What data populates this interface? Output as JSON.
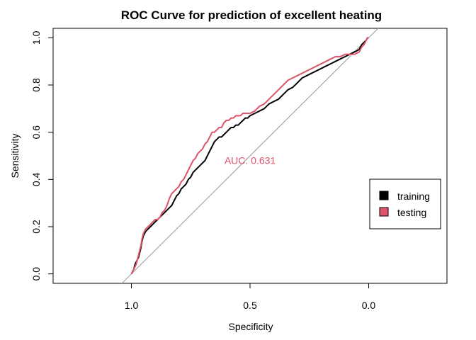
{
  "chart_data": {
    "type": "line",
    "title": "ROC Curve for prediction of excellent heating",
    "xlabel": "Specificity",
    "ylabel": "Sensitivity",
    "xlim": [
      1.33,
      -0.33
    ],
    "ylim": [
      -0.04,
      1.04
    ],
    "x_ticks": [
      1.0,
      0.5,
      0.0
    ],
    "x_tick_labels": [
      "1.0",
      "0.5",
      "0.0"
    ],
    "y_ticks": [
      0.0,
      0.2,
      0.4,
      0.6,
      0.8,
      1.0
    ],
    "y_tick_labels": [
      "0.0",
      "0.2",
      "0.4",
      "0.6",
      "0.8",
      "1.0"
    ],
    "reference_line": {
      "from": [
        1.05,
        -0.05
      ],
      "to": [
        -0.05,
        1.05
      ],
      "color": "#999999"
    },
    "annotation": {
      "text": "AUC: 0.631",
      "x": 0.5,
      "y": 0.48,
      "color": "#DF536B"
    },
    "legend": {
      "position": "right",
      "entries": [
        {
          "label": "training",
          "color": "#000000"
        },
        {
          "label": "testing",
          "color": "#DF536B"
        }
      ]
    },
    "series": [
      {
        "name": "training",
        "color": "#000000",
        "specificity": [
          1.0,
          0.995,
          0.99,
          0.985,
          0.98,
          0.975,
          0.97,
          0.965,
          0.96,
          0.955,
          0.95,
          0.94,
          0.93,
          0.92,
          0.91,
          0.9,
          0.89,
          0.88,
          0.87,
          0.86,
          0.85,
          0.84,
          0.83,
          0.82,
          0.81,
          0.8,
          0.79,
          0.78,
          0.77,
          0.76,
          0.75,
          0.74,
          0.73,
          0.72,
          0.71,
          0.7,
          0.69,
          0.68,
          0.67,
          0.66,
          0.65,
          0.64,
          0.63,
          0.62,
          0.61,
          0.6,
          0.59,
          0.58,
          0.57,
          0.56,
          0.55,
          0.54,
          0.53,
          0.52,
          0.51,
          0.5,
          0.48,
          0.46,
          0.44,
          0.42,
          0.4,
          0.38,
          0.36,
          0.35,
          0.34,
          0.32,
          0.3,
          0.28,
          0.26,
          0.24,
          0.22,
          0.2,
          0.18,
          0.16,
          0.14,
          0.12,
          0.1,
          0.08,
          0.06,
          0.04,
          0.03,
          0.02,
          0.01,
          0.005,
          0.0
        ],
        "sensitivity": [
          0.0,
          0.01,
          0.02,
          0.04,
          0.05,
          0.06,
          0.07,
          0.09,
          0.11,
          0.14,
          0.16,
          0.18,
          0.19,
          0.2,
          0.21,
          0.22,
          0.23,
          0.24,
          0.25,
          0.26,
          0.27,
          0.28,
          0.29,
          0.31,
          0.33,
          0.34,
          0.36,
          0.37,
          0.38,
          0.4,
          0.41,
          0.43,
          0.44,
          0.45,
          0.46,
          0.47,
          0.48,
          0.5,
          0.52,
          0.54,
          0.56,
          0.57,
          0.58,
          0.58,
          0.59,
          0.6,
          0.61,
          0.62,
          0.62,
          0.63,
          0.63,
          0.64,
          0.65,
          0.66,
          0.66,
          0.67,
          0.68,
          0.69,
          0.7,
          0.72,
          0.73,
          0.74,
          0.76,
          0.77,
          0.78,
          0.79,
          0.81,
          0.83,
          0.84,
          0.85,
          0.86,
          0.87,
          0.88,
          0.89,
          0.9,
          0.91,
          0.92,
          0.93,
          0.94,
          0.95,
          0.97,
          0.98,
          0.99,
          1.0,
          1.0
        ]
      },
      {
        "name": "testing",
        "color": "#DF536B",
        "specificity": [
          1.0,
          0.995,
          0.99,
          0.985,
          0.98,
          0.975,
          0.97,
          0.965,
          0.96,
          0.955,
          0.95,
          0.94,
          0.93,
          0.92,
          0.91,
          0.9,
          0.89,
          0.88,
          0.87,
          0.86,
          0.85,
          0.84,
          0.83,
          0.82,
          0.81,
          0.8,
          0.79,
          0.78,
          0.77,
          0.76,
          0.75,
          0.74,
          0.73,
          0.72,
          0.71,
          0.7,
          0.69,
          0.68,
          0.67,
          0.66,
          0.65,
          0.64,
          0.63,
          0.62,
          0.61,
          0.6,
          0.59,
          0.58,
          0.57,
          0.56,
          0.55,
          0.54,
          0.53,
          0.52,
          0.51,
          0.5,
          0.48,
          0.46,
          0.44,
          0.42,
          0.4,
          0.38,
          0.36,
          0.34,
          0.32,
          0.3,
          0.28,
          0.26,
          0.24,
          0.22,
          0.2,
          0.18,
          0.16,
          0.14,
          0.12,
          0.1,
          0.08,
          0.06,
          0.04,
          0.03,
          0.02,
          0.01,
          0.005,
          0.0
        ],
        "sensitivity": [
          0.0,
          0.01,
          0.02,
          0.03,
          0.04,
          0.06,
          0.08,
          0.1,
          0.12,
          0.15,
          0.17,
          0.19,
          0.2,
          0.21,
          0.22,
          0.23,
          0.23,
          0.24,
          0.26,
          0.27,
          0.29,
          0.32,
          0.34,
          0.35,
          0.36,
          0.37,
          0.39,
          0.4,
          0.42,
          0.44,
          0.46,
          0.48,
          0.49,
          0.51,
          0.52,
          0.53,
          0.55,
          0.56,
          0.58,
          0.6,
          0.6,
          0.61,
          0.62,
          0.62,
          0.64,
          0.65,
          0.65,
          0.66,
          0.66,
          0.67,
          0.67,
          0.67,
          0.68,
          0.68,
          0.68,
          0.68,
          0.69,
          0.71,
          0.72,
          0.74,
          0.76,
          0.78,
          0.8,
          0.82,
          0.83,
          0.84,
          0.85,
          0.86,
          0.87,
          0.88,
          0.89,
          0.9,
          0.91,
          0.92,
          0.92,
          0.93,
          0.93,
          0.93,
          0.94,
          0.96,
          0.97,
          0.99,
          1.0,
          1.0
        ]
      }
    ]
  }
}
